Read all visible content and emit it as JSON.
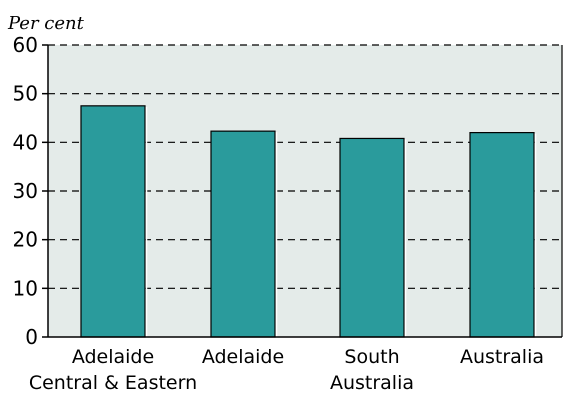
{
  "chart_data": {
    "type": "bar",
    "title": "",
    "ylabel": "Per cent",
    "xlabel": "",
    "ylim": [
      0,
      60
    ],
    "yticks": [
      0,
      10,
      20,
      30,
      40,
      50,
      60
    ],
    "grid": "dashed horizontal",
    "categories": [
      {
        "lines": [
          "Adelaide",
          "Central & Eastern"
        ]
      },
      {
        "lines": [
          "Adelaide"
        ]
      },
      {
        "lines": [
          "South",
          "Australia"
        ]
      },
      {
        "lines": [
          "Australia"
        ]
      }
    ],
    "values": [
      47.5,
      42.3,
      40.8,
      42.0
    ],
    "colors": {
      "bar": "#2a9b9c",
      "plot_background": "#e4ebe9",
      "bar_edge": "#000000"
    }
  }
}
